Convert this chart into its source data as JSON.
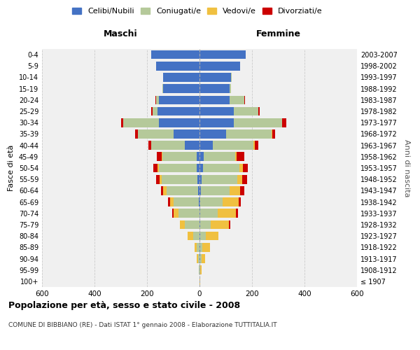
{
  "age_groups": [
    "100+",
    "95-99",
    "90-94",
    "85-89",
    "80-84",
    "75-79",
    "70-74",
    "65-69",
    "60-64",
    "55-59",
    "50-54",
    "45-49",
    "40-44",
    "35-39",
    "30-34",
    "25-29",
    "20-24",
    "15-19",
    "10-14",
    "5-9",
    "0-4"
  ],
  "birth_years": [
    "≤ 1907",
    "1908-1912",
    "1913-1917",
    "1918-1922",
    "1923-1927",
    "1928-1932",
    "1933-1937",
    "1938-1942",
    "1943-1947",
    "1948-1952",
    "1953-1957",
    "1958-1962",
    "1963-1967",
    "1968-1972",
    "1973-1977",
    "1978-1982",
    "1983-1987",
    "1988-1992",
    "1993-1997",
    "1998-2002",
    "2003-2007"
  ],
  "maschi": {
    "celibi": [
      0,
      0,
      0,
      0,
      0,
      0,
      0,
      3,
      5,
      8,
      10,
      12,
      55,
      100,
      155,
      160,
      155,
      140,
      140,
      165,
      185
    ],
    "coniugati": [
      0,
      2,
      5,
      10,
      25,
      55,
      80,
      95,
      120,
      135,
      145,
      130,
      130,
      135,
      135,
      20,
      10,
      2,
      0,
      0,
      0
    ],
    "vedovi": [
      0,
      2,
      5,
      10,
      20,
      20,
      20,
      15,
      15,
      8,
      5,
      2,
      0,
      0,
      0,
      0,
      0,
      0,
      0,
      0,
      0
    ],
    "divorziati": [
      0,
      0,
      0,
      0,
      0,
      0,
      5,
      8,
      8,
      15,
      15,
      18,
      10,
      10,
      10,
      5,
      2,
      0,
      0,
      0,
      0
    ]
  },
  "femmine": {
    "nubili": [
      0,
      0,
      2,
      3,
      3,
      3,
      3,
      3,
      5,
      8,
      12,
      15,
      50,
      100,
      130,
      130,
      115,
      115,
      120,
      155,
      175
    ],
    "coniugate": [
      0,
      2,
      5,
      8,
      20,
      40,
      65,
      85,
      110,
      135,
      140,
      120,
      155,
      175,
      185,
      95,
      55,
      5,
      2,
      0,
      0
    ],
    "vedove": [
      2,
      5,
      15,
      30,
      50,
      70,
      70,
      60,
      40,
      20,
      12,
      5,
      5,
      2,
      0,
      0,
      0,
      0,
      0,
      0,
      0
    ],
    "divorziate": [
      0,
      0,
      0,
      0,
      0,
      5,
      8,
      10,
      15,
      18,
      20,
      30,
      15,
      12,
      15,
      5,
      2,
      0,
      0,
      0,
      0
    ]
  },
  "colors": {
    "celibi_nubili": "#4472c4",
    "coniugati": "#b5c99a",
    "vedovi": "#f0c040",
    "divorziati": "#cc0000"
  },
  "xlim": 600,
  "title": "Popolazione per età, sesso e stato civile - 2008",
  "subtitle": "COMUNE DI BIBBIANO (RE) - Dati ISTAT 1° gennaio 2008 - Elaborazione TUTTITALIA.IT",
  "ylabel_left": "Fasce di età",
  "ylabel_right": "Anni di nascita",
  "xlabel_left": "Maschi",
  "xlabel_right": "Femmine"
}
